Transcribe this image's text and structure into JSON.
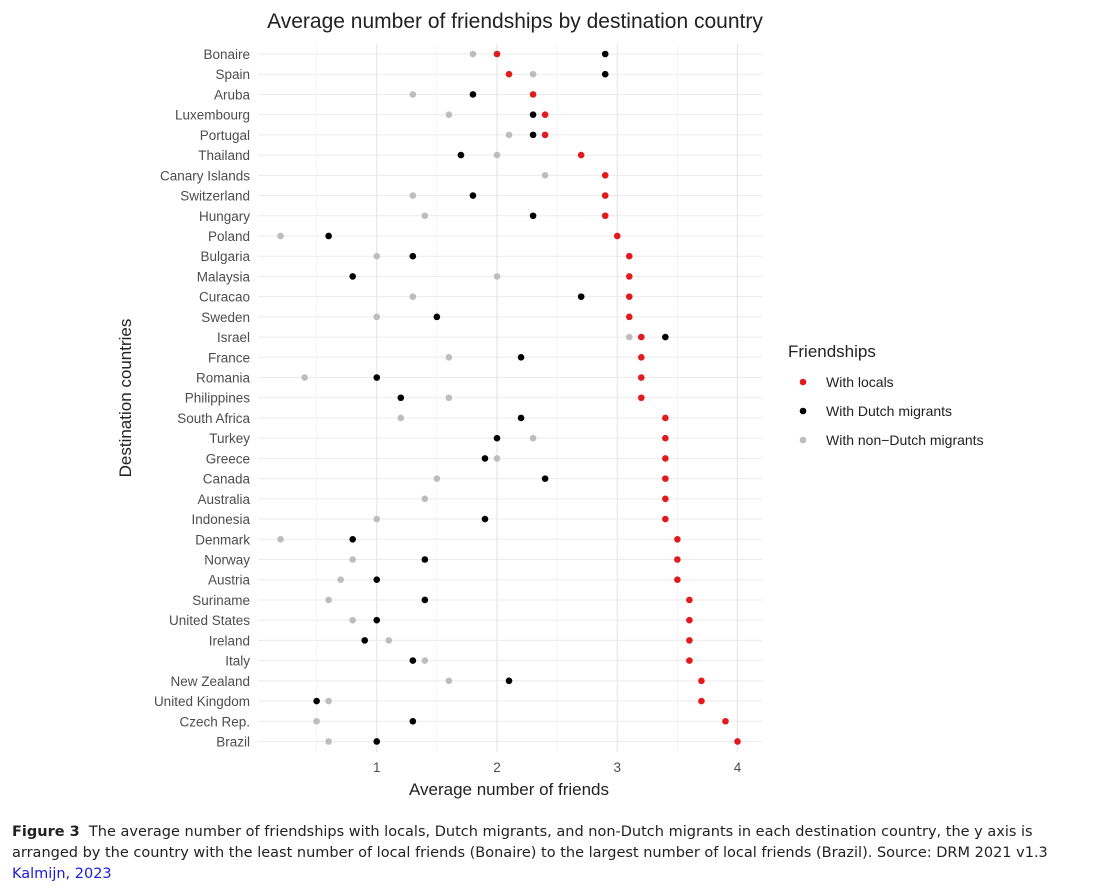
{
  "chart_data": {
    "type": "scatter",
    "title": "Average number of friendships by destination country",
    "xlabel": "Average number of friends",
    "ylabel": "Destination countries",
    "xlim": [
      0,
      4.2
    ],
    "xticks": [
      1,
      2,
      3,
      4
    ],
    "grid": true,
    "legend": {
      "title": "Friendships",
      "position": "right"
    },
    "categories": [
      "Bonaire",
      "Spain",
      "Aruba",
      "Luxembourg",
      "Portugal",
      "Thailand",
      "Canary Islands",
      "Switzerland",
      "Hungary",
      "Poland",
      "Bulgaria",
      "Malaysia",
      "Curacao",
      "Sweden",
      "Israel",
      "France",
      "Romania",
      "Philippines",
      "South Africa",
      "Turkey",
      "Greece",
      "Canada",
      "Australia",
      "Indonesia",
      "Denmark",
      "Norway",
      "Austria",
      "Suriname",
      "United States",
      "Ireland",
      "Italy",
      "New Zealand",
      "United Kingdom",
      "Czech Rep.",
      "Brazil"
    ],
    "series": [
      {
        "name": "With locals",
        "color": "#e31a1c",
        "values": [
          2.0,
          2.1,
          2.3,
          2.4,
          2.4,
          2.7,
          2.9,
          2.9,
          2.9,
          3.0,
          3.1,
          3.1,
          3.1,
          3.1,
          3.2,
          3.2,
          3.2,
          3.2,
          3.4,
          3.4,
          3.4,
          3.4,
          3.4,
          3.4,
          3.5,
          3.5,
          3.5,
          3.6,
          3.6,
          3.6,
          3.6,
          3.7,
          3.7,
          3.9,
          4.0
        ]
      },
      {
        "name": "With non−Dutch migrants",
        "color": "#bdbdbd",
        "values": [
          1.8,
          2.3,
          1.3,
          1.6,
          2.1,
          2.0,
          2.4,
          1.3,
          1.4,
          0.2,
          1.0,
          2.0,
          1.3,
          1.0,
          3.1,
          1.6,
          0.4,
          1.6,
          1.2,
          2.3,
          2.0,
          1.5,
          1.4,
          1.0,
          0.2,
          0.8,
          0.7,
          0.6,
          0.8,
          1.1,
          1.4,
          1.6,
          0.6,
          0.5,
          0.6
        ]
      },
      {
        "name": "With Dutch migrants",
        "color": "#000000",
        "values": [
          2.9,
          2.9,
          1.8,
          2.3,
          2.3,
          1.7,
          null,
          1.8,
          2.3,
          0.6,
          1.3,
          0.8,
          2.7,
          1.5,
          3.4,
          2.2,
          1.0,
          1.2,
          2.2,
          2.0,
          1.9,
          2.4,
          null,
          1.9,
          0.8,
          1.4,
          1.0,
          1.4,
          1.0,
          0.9,
          1.3,
          2.1,
          0.5,
          1.3,
          1.0
        ]
      }
    ]
  },
  "legend_order": [
    "With locals",
    "With Dutch migrants",
    "With non−Dutch migrants"
  ],
  "caption": {
    "label": "Figure 3",
    "text": "The average number of friendships with locals, Dutch migrants, and non-Dutch migrants in each destination country, the y axis is arranged by the country with the least number of local friends (Bonaire) to the largest number of local friends (Brazil). Source: DRM 2021 v1.3",
    "citation": "Kalmijn, 2023"
  }
}
